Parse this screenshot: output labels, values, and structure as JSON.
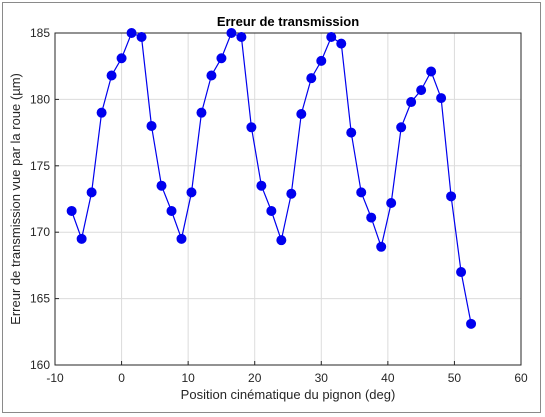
{
  "chart_data": {
    "type": "line",
    "title": "Erreur de transmission",
    "xlabel": "Position cinématique du pignon (deg)",
    "ylabel": "Erreur de transmission vue par la roue (µm)",
    "xlim": [
      -10,
      60
    ],
    "ylim": [
      160,
      185
    ],
    "xticks": [
      -10,
      0,
      10,
      20,
      30,
      40,
      50,
      60
    ],
    "yticks": [
      160,
      165,
      170,
      175,
      180,
      185
    ],
    "grid": true,
    "series": [
      {
        "color": "#0000ee",
        "marker": "circle",
        "x": [
          -7.5,
          -6.0,
          -4.5,
          -3.0,
          -1.5,
          0.0,
          1.5,
          3.0,
          4.5,
          6.0,
          7.5,
          9.0,
          10.5,
          12.0,
          13.5,
          15.0,
          16.5,
          18.0,
          19.5,
          21.0,
          22.5,
          24.0,
          25.5,
          27.0,
          28.5,
          30.0,
          31.5,
          33.0,
          34.5,
          36.0,
          37.5,
          39.0,
          40.5,
          42.0,
          43.5,
          45.0,
          46.5,
          48.0,
          49.5,
          51.0,
          52.5
        ],
        "y": [
          171.6,
          169.5,
          173.0,
          179.0,
          181.8,
          183.1,
          185.0,
          184.7,
          178.0,
          173.5,
          171.6,
          169.5,
          173.0,
          179.0,
          181.8,
          183.1,
          185.0,
          184.7,
          177.9,
          173.5,
          171.6,
          169.4,
          172.9,
          178.9,
          181.6,
          182.9,
          184.7,
          184.2,
          177.5,
          173.0,
          171.1,
          168.9,
          172.2,
          177.9,
          179.8,
          180.7,
          182.1,
          180.1,
          172.7,
          167.0,
          163.1
        ]
      }
    ]
  }
}
